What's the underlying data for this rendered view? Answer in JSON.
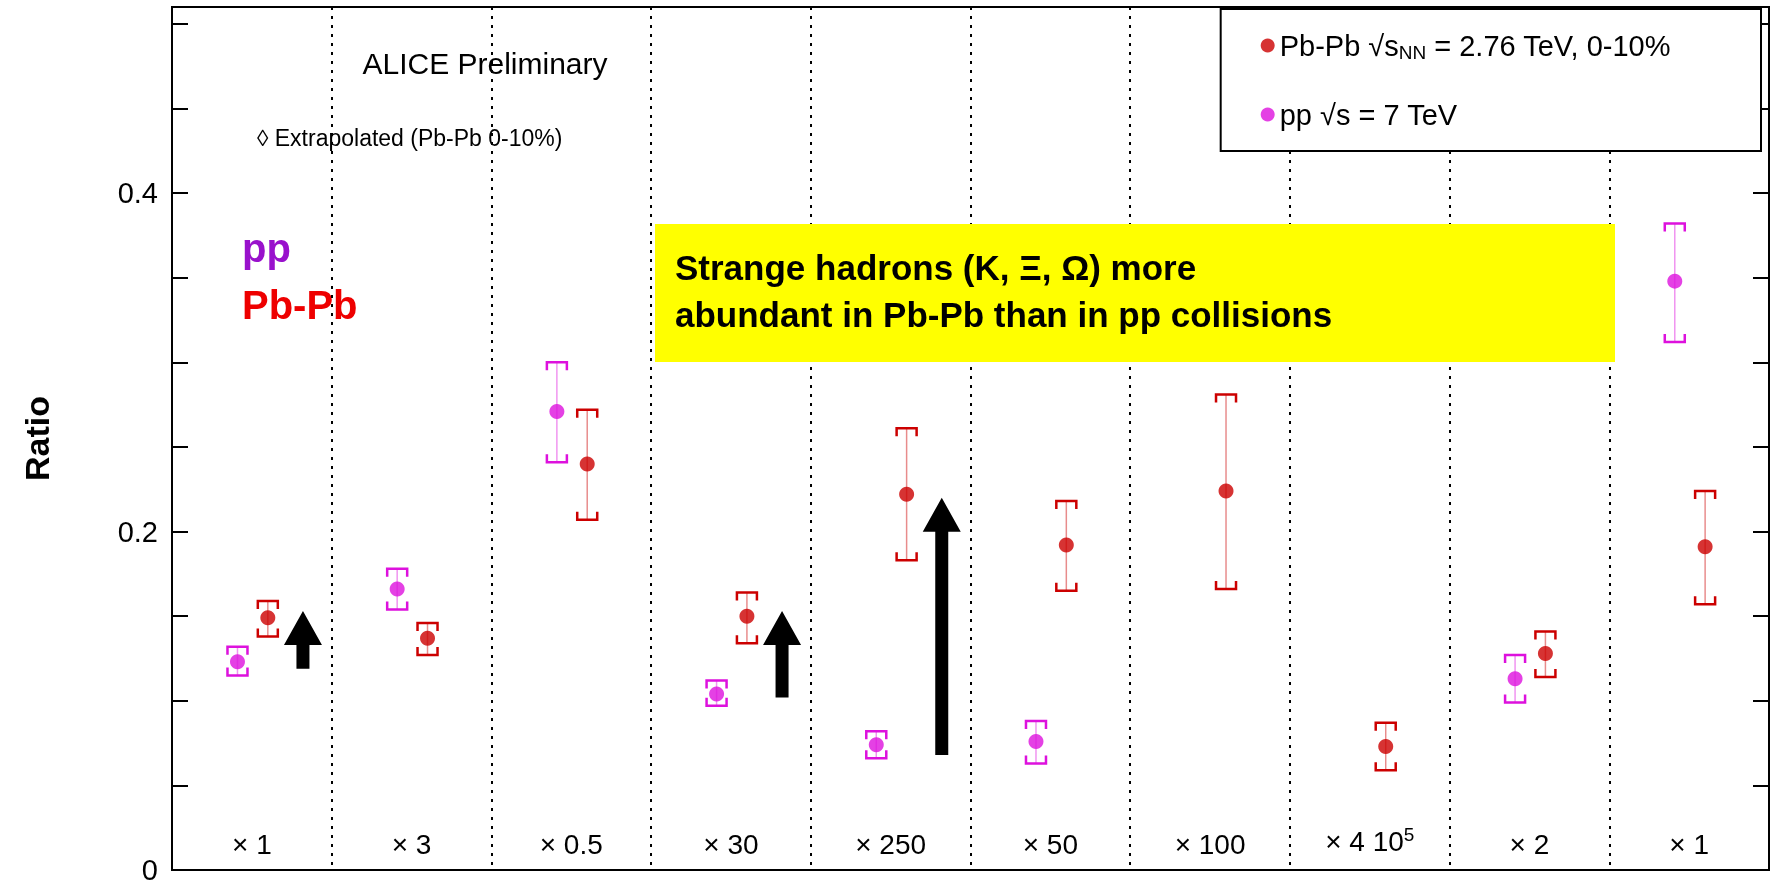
{
  "chart_data": {
    "type": "scatter",
    "ylabel": "Ratio",
    "categories": [
      "× 1",
      "× 3",
      "× 0.5",
      "× 30",
      "× 250",
      "× 50",
      "× 100",
      "× 4 10$^{5}$",
      "× 2",
      "× 1"
    ],
    "series": [
      {
        "name": "Pb-Pb √s$_{NN}$ = 2.76 TeV, 0-10%",
        "color": "#cc0000",
        "values": [
          0.149,
          0.137,
          0.24,
          0.15,
          0.222,
          0.192,
          0.224,
          0.073,
          0.128,
          0.191
        ],
        "errors": [
          [
            0.138,
            0.159
          ],
          [
            0.127,
            0.146
          ],
          [
            0.207,
            0.272
          ],
          [
            0.134,
            0.164
          ],
          [
            0.183,
            0.261
          ],
          [
            0.165,
            0.218
          ],
          [
            0.166,
            0.281
          ],
          [
            0.059,
            0.087
          ],
          [
            0.114,
            0.141
          ],
          [
            0.157,
            0.224
          ]
        ]
      },
      {
        "name": "pp √s = 7 TeV",
        "color": "#dd11dd",
        "values": [
          0.123,
          0.166,
          0.271,
          0.104,
          0.074,
          0.076,
          null,
          null,
          0.113,
          0.348
        ],
        "errors": [
          [
            0.115,
            0.132
          ],
          [
            0.154,
            0.178
          ],
          [
            0.241,
            0.3
          ],
          [
            0.097,
            0.112
          ],
          [
            0.066,
            0.082
          ],
          [
            0.063,
            0.088
          ],
          null,
          null,
          [
            0.099,
            0.127
          ],
          [
            0.312,
            0.382
          ]
        ]
      }
    ],
    "ylim": [
      0,
      0.51
    ],
    "yticks": [
      0,
      {
        "value": 0.05,
        "label": null
      },
      {
        "value": 0.1,
        "label": null
      },
      {
        "value": 0.15,
        "label": null
      },
      0.2,
      {
        "value": 0.25,
        "label": null
      },
      {
        "value": 0.3,
        "label": null
      },
      {
        "value": 0.35,
        "label": null
      },
      0.4,
      {
        "value": 0.45,
        "label": null
      },
      {
        "value": 0.5,
        "label": null
      }
    ],
    "annotations": [
      "ALICE Preliminary",
      "◊ Extrapolated (Pb-Pb 0-10%)",
      "pp",
      "Pb-Pb",
      "Strange hadrons (K, Ξ, Ω) more\nabundant in Pb-Pb than in pp collisions"
    ],
    "grid": "x",
    "legend": "top right",
    "marker": "circle"
  }
}
